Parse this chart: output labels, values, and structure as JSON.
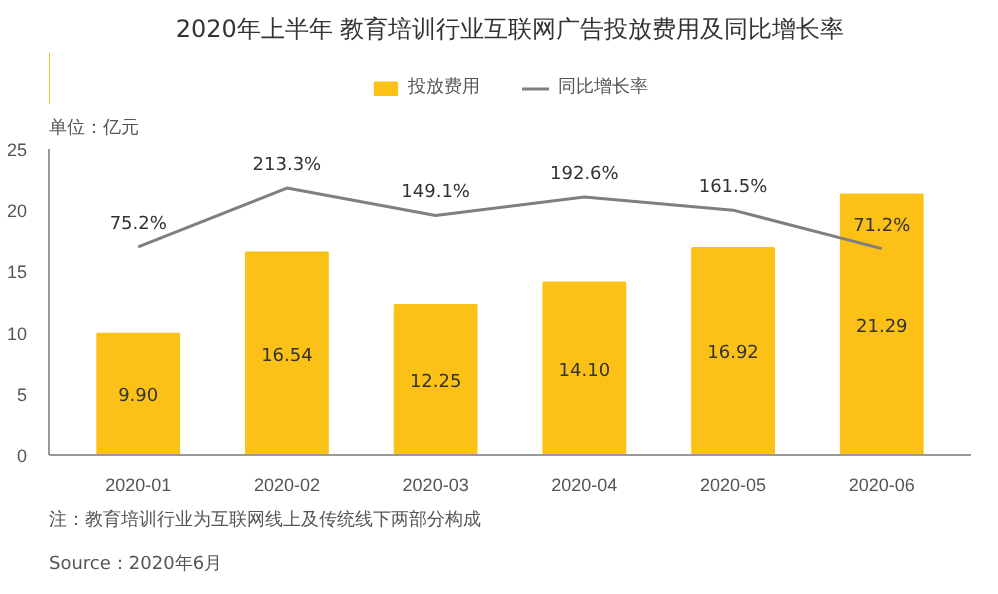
{
  "chart_data": {
    "type": "bar",
    "title": "2020年上半年 教育培训行业互联网广告投放费用及同比增长率",
    "ylabel": "单位：亿元",
    "categories": [
      "2020-01",
      "2020-02",
      "2020-03",
      "2020-04",
      "2020-05",
      "2020-06"
    ],
    "series": [
      {
        "name": "投放费用",
        "color": "#fbc117",
        "values": [
          9.9,
          16.54,
          12.25,
          14.1,
          16.92,
          21.29
        ],
        "value_labels": [
          "9.90",
          "16.54",
          "12.25",
          "14.10",
          "16.92",
          "21.29"
        ]
      },
      {
        "name": "同比增长率",
        "type": "line",
        "axis": "y2",
        "color": "#7f7f7f",
        "values": [
          75.2,
          213.3,
          149.1,
          192.6,
          161.5,
          71.2
        ],
        "value_labels": [
          "75.2%",
          "213.3%",
          "149.1%",
          "192.6%",
          "161.5%",
          "71.2%"
        ]
      }
    ],
    "ylim": [
      0,
      25
    ],
    "yticks": [
      0,
      5,
      10,
      15,
      20,
      25
    ],
    "y2lim": [
      -413,
      305
    ],
    "grid": false,
    "legend": "top",
    "marker": "none",
    "annotations": [
      "注：教育培训行业为互联网线上及传统线下两部分构成",
      "Source：2020年6月"
    ]
  }
}
